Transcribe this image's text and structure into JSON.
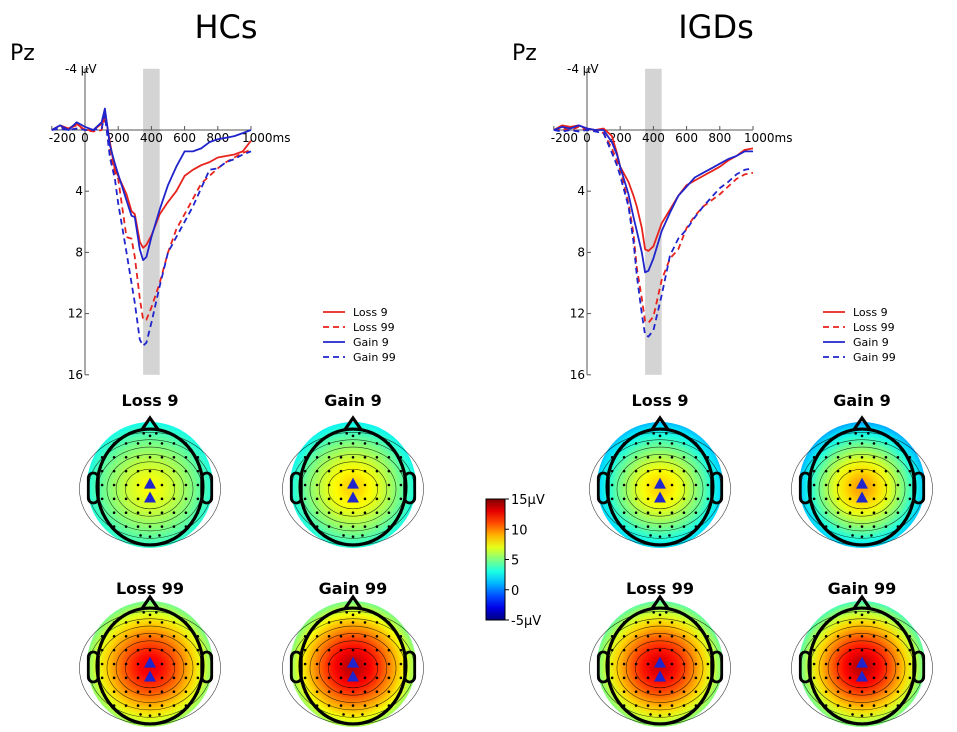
{
  "colors": {
    "loss": "#e8221c",
    "gain": "#1f24cc",
    "window": "#d4d4d4",
    "electrode": "#1f24cc"
  },
  "chart_data": [
    {
      "type": "line",
      "panel": "left",
      "title": "HCs",
      "channel_label": "Pz",
      "xlabel": "ms",
      "ylabel": "µV",
      "x_ticks": [
        "-200",
        "0",
        "200",
        "400",
        "600",
        "800",
        "1000ms"
      ],
      "y_ticks": [
        "-4 µV",
        "4",
        "8",
        "12",
        "16"
      ],
      "xlim": [
        -200,
        1000
      ],
      "ylim": [
        -4,
        16
      ],
      "y_inverted": true,
      "highlight_window_ms": [
        350,
        450
      ],
      "legend": [
        "Loss 9",
        "Loss 99",
        "Gain 9",
        "Gain 99"
      ],
      "series": [
        {
          "name": "Loss 9",
          "style": "solid",
          "color_key": "loss",
          "x": [
            -200,
            -150,
            -100,
            -50,
            0,
            50,
            100,
            120,
            150,
            180,
            200,
            250,
            280,
            300,
            330,
            350,
            370,
            400,
            450,
            500,
            550,
            600,
            650,
            700,
            750,
            800,
            850,
            900,
            950,
            1000
          ],
          "y": [
            0,
            -0.3,
            -0.1,
            -0.4,
            0,
            0,
            -0.4,
            -1.2,
            0.8,
            2.6,
            3.0,
            4.2,
            5.3,
            5.5,
            7.3,
            7.7,
            7.5,
            6.9,
            5.5,
            4.7,
            4.0,
            3.0,
            2.6,
            2.3,
            2.1,
            1.8,
            1.7,
            1.6,
            1.4,
            0.7
          ]
        },
        {
          "name": "Loss 99",
          "style": "dashed",
          "color_key": "loss",
          "x": [
            -200,
            -150,
            -100,
            -50,
            0,
            50,
            100,
            120,
            150,
            180,
            200,
            250,
            280,
            300,
            330,
            350,
            370,
            400,
            450,
            500,
            550,
            600,
            650,
            700,
            750,
            800,
            850,
            900,
            950,
            1000
          ],
          "y": [
            0,
            -0.2,
            -0.1,
            -0.3,
            0,
            0.1,
            0,
            -0.9,
            1.5,
            2.8,
            3.2,
            7.0,
            7.1,
            8.3,
            11.0,
            12.4,
            12.4,
            11.6,
            10.0,
            8.0,
            6.5,
            5.5,
            4.5,
            3.5,
            3.0,
            2.5,
            2.1,
            1.8,
            1.5,
            1.3
          ]
        },
        {
          "name": "Gain 9",
          "style": "solid",
          "color_key": "gain",
          "x": [
            -200,
            -150,
            -100,
            -50,
            0,
            50,
            100,
            120,
            150,
            180,
            200,
            250,
            280,
            300,
            330,
            350,
            370,
            400,
            450,
            500,
            550,
            600,
            650,
            700,
            750,
            800,
            850,
            900,
            950,
            1000
          ],
          "y": [
            0,
            -0.3,
            0,
            -0.5,
            -0.2,
            0,
            -0.5,
            -1.4,
            1.0,
            2.2,
            2.9,
            4.6,
            5.6,
            5.7,
            7.8,
            8.5,
            8.3,
            7.0,
            5.2,
            3.6,
            2.4,
            1.4,
            1.4,
            1.2,
            0.8,
            0.6,
            0.5,
            0.4,
            0.2,
            0
          ]
        },
        {
          "name": "Gain 99",
          "style": "dashed",
          "color_key": "gain",
          "x": [
            -200,
            -150,
            -100,
            -50,
            0,
            50,
            100,
            120,
            150,
            180,
            200,
            250,
            280,
            300,
            330,
            350,
            370,
            400,
            450,
            500,
            550,
            600,
            650,
            700,
            750,
            800,
            850,
            900,
            950,
            1000
          ],
          "y": [
            0,
            -0.1,
            0,
            -0.1,
            0,
            0,
            -0.1,
            -1.0,
            1.8,
            3.2,
            4.8,
            8.0,
            10.0,
            11.3,
            13.7,
            14.1,
            13.9,
            12.6,
            10.2,
            8.0,
            7.0,
            6.0,
            5.0,
            3.8,
            2.6,
            2.5,
            2.1,
            1.9,
            1.6,
            1.4
          ]
        }
      ]
    },
    {
      "type": "line",
      "panel": "right",
      "title": "IGDs",
      "channel_label": "Pz",
      "xlabel": "ms",
      "ylabel": "µV",
      "x_ticks": [
        "-200",
        "0",
        "200",
        "400",
        "600",
        "800",
        "1000ms"
      ],
      "y_ticks": [
        "-4 µV",
        "4",
        "8",
        "12",
        "16"
      ],
      "xlim": [
        -200,
        1000
      ],
      "ylim": [
        -4,
        16
      ],
      "y_inverted": true,
      "highlight_window_ms": [
        350,
        450
      ],
      "legend": [
        "Loss 9",
        "Loss 99",
        "Gain 9",
        "Gain 99"
      ],
      "series": [
        {
          "name": "Loss 9",
          "style": "solid",
          "color_key": "loss",
          "x": [
            -200,
            -150,
            -100,
            -50,
            0,
            50,
            100,
            150,
            180,
            200,
            250,
            280,
            300,
            330,
            350,
            370,
            400,
            450,
            500,
            550,
            600,
            650,
            700,
            750,
            800,
            850,
            900,
            950,
            1000
          ],
          "y": [
            0,
            -0.3,
            -0.2,
            -0.3,
            -0.1,
            0,
            -0.1,
            0.4,
            1.5,
            2.4,
            3.4,
            4.3,
            5.0,
            6.4,
            7.8,
            7.9,
            7.6,
            6.1,
            5.2,
            4.3,
            3.6,
            3.3,
            3.0,
            2.7,
            2.4,
            2.0,
            1.7,
            1.3,
            1.2
          ]
        },
        {
          "name": "Loss 99",
          "style": "dashed",
          "color_key": "loss",
          "x": [
            -200,
            -150,
            -100,
            -50,
            0,
            50,
            100,
            150,
            180,
            200,
            250,
            280,
            300,
            330,
            350,
            370,
            400,
            450,
            500,
            550,
            600,
            650,
            700,
            750,
            800,
            850,
            900,
            950,
            1000
          ],
          "y": [
            0,
            -0.1,
            0,
            -0.2,
            0,
            0,
            0.2,
            1.2,
            2.0,
            2.6,
            4.8,
            6.8,
            9.0,
            11.0,
            12.5,
            12.6,
            12.2,
            9.8,
            8.4,
            7.8,
            6.4,
            5.6,
            5.0,
            4.6,
            4.2,
            3.7,
            3.2,
            2.9,
            2.8
          ]
        },
        {
          "name": "Gain 9",
          "style": "solid",
          "color_key": "gain",
          "x": [
            -200,
            -150,
            -100,
            -50,
            0,
            50,
            100,
            150,
            180,
            200,
            250,
            280,
            300,
            330,
            350,
            370,
            400,
            450,
            500,
            550,
            600,
            650,
            700,
            750,
            800,
            850,
            900,
            950,
            1000
          ],
          "y": [
            0,
            -0.2,
            -0.1,
            -0.3,
            -0.1,
            0,
            0,
            0.8,
            1.6,
            2.4,
            4.2,
            5.7,
            6.6,
            8.0,
            9.3,
            9.2,
            8.4,
            6.6,
            5.4,
            4.3,
            3.7,
            3.1,
            2.8,
            2.5,
            2.2,
            1.9,
            1.7,
            1.4,
            1.4
          ]
        },
        {
          "name": "Gain 99",
          "style": "dashed",
          "color_key": "gain",
          "x": [
            -200,
            -150,
            -100,
            -50,
            0,
            50,
            100,
            150,
            180,
            200,
            250,
            280,
            300,
            330,
            350,
            370,
            400,
            450,
            500,
            550,
            600,
            650,
            700,
            750,
            800,
            850,
            900,
            950,
            1000
          ],
          "y": [
            0,
            0.1,
            0,
            0.1,
            0,
            0.1,
            0.2,
            1.5,
            2.3,
            3.0,
            5.0,
            7.3,
            9.5,
            12.0,
            13.4,
            13.5,
            13.1,
            10.8,
            8.2,
            7.1,
            6.5,
            5.7,
            5.0,
            4.4,
            3.8,
            3.4,
            2.9,
            2.6,
            2.5
          ]
        }
      ]
    }
  ],
  "topomaps": {
    "colorbar": {
      "labels": [
        "15µV",
        "10",
        "5",
        "0",
        "-5µV"
      ],
      "min": -5,
      "max": 15
    },
    "groups": [
      {
        "group": "HCs",
        "maps": [
          {
            "label": "Loss 9",
            "peak_uv": 7.5,
            "edge_uv": 2.5
          },
          {
            "label": "Gain 9",
            "peak_uv": 8.5,
            "edge_uv": 2.0
          },
          {
            "label": "Loss 99",
            "peak_uv": 13.0,
            "edge_uv": 4.0
          },
          {
            "label": "Gain 99",
            "peak_uv": 14.0,
            "edge_uv": 4.0
          }
        ]
      },
      {
        "group": "IGDs",
        "maps": [
          {
            "label": "Loss 9",
            "peak_uv": 8.5,
            "edge_uv": 0.5
          },
          {
            "label": "Gain 9",
            "peak_uv": 9.5,
            "edge_uv": 0.0
          },
          {
            "label": "Loss 99",
            "peak_uv": 13.5,
            "edge_uv": 3.5
          },
          {
            "label": "Gain 99",
            "peak_uv": 14.0,
            "edge_uv": 3.0
          }
        ]
      }
    ]
  }
}
